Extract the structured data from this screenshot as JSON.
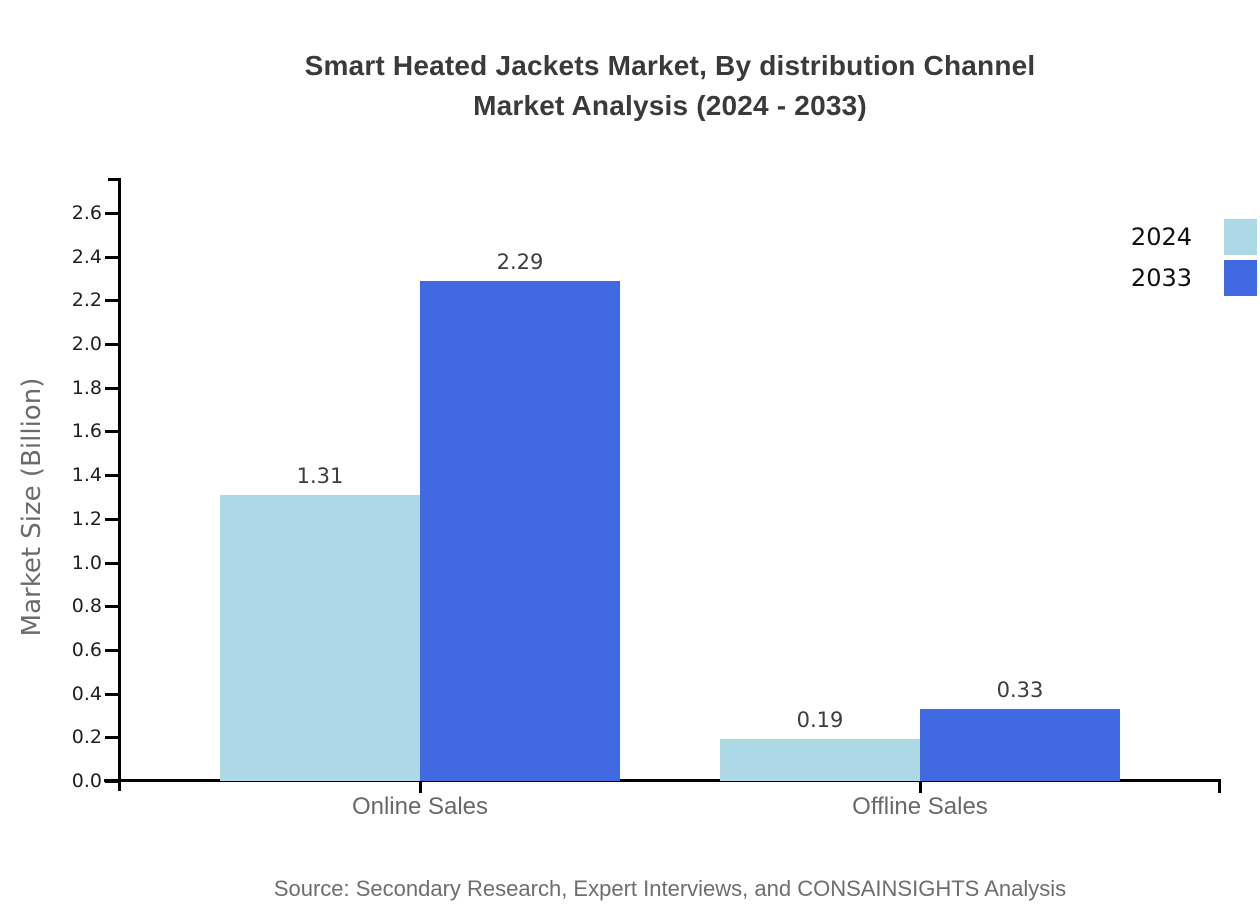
{
  "title": {
    "line1": "Smart Heated Jackets Market, By distribution Channel",
    "line2": "Market Analysis (2024 - 2033)"
  },
  "source": "Source: Secondary Research, Expert Interviews, and CONSAINSIGHTS Analysis",
  "chart_data": {
    "type": "bar",
    "title": "Smart Heated Jackets Market, By distribution Channel Market Analysis (2024 - 2033)",
    "categories": [
      "Online Sales",
      "Offline Sales"
    ],
    "series": [
      {
        "name": "2024",
        "color": "#ADD8E6",
        "values": [
          1.31,
          0.19
        ]
      },
      {
        "name": "2033",
        "color": "#4169E1",
        "values": [
          2.29,
          0.33
        ]
      }
    ],
    "xlabel": "",
    "ylabel": "Market Size (Billion)",
    "ylim": [
      0,
      2.76
    ],
    "yticks": [
      "0.0",
      "0.2",
      "0.4",
      "0.6",
      "0.8",
      "1.0",
      "1.2",
      "1.4",
      "1.6",
      "1.8",
      "2.0",
      "2.2",
      "2.4",
      "2.6"
    ],
    "grid": false,
    "value_labels": true,
    "legend_position": "right",
    "axis_color": "#000000"
  }
}
